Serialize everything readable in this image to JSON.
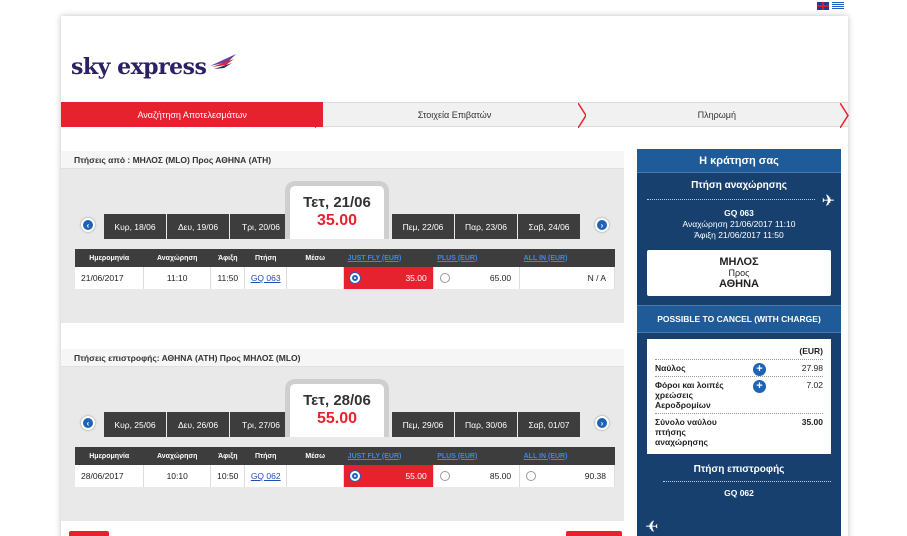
{
  "flags": [
    "uk-flag",
    "greek-flag"
  ],
  "brand": {
    "name": "sky express"
  },
  "steps": [
    {
      "label": "Αναζήτηση Αποτελεσμάτων",
      "active": true
    },
    {
      "label": "Στοιχεία Επιβατών",
      "active": false
    },
    {
      "label": "Πληρωμή",
      "active": false
    }
  ],
  "outbound": {
    "title": "Πτήσεις από : ΜΗΛΟΣ (MLO) Προς ΑΘΗΝΑ (ATH)",
    "dates_before": [
      "Κυρ, 18/06",
      "Δευ, 19/06",
      "Τρι, 20/06"
    ],
    "selected": {
      "date": "Τετ, 21/06",
      "price": "35.00"
    },
    "dates_after": [
      "Πεμ, 22/06",
      "Παρ, 23/06",
      "Σαβ, 24/06"
    ],
    "headers": [
      "Ημερομηνία",
      "Αναχώρηση",
      "Άφιξη",
      "Πτήση",
      "Μέσω",
      "JUST FLY (EUR)",
      "PLUS (EUR)",
      "ALL IN (EUR)"
    ],
    "row": {
      "date": "21/06/2017",
      "dep": "11:10",
      "arr": "11:50",
      "flight": "GQ 063",
      "via": "",
      "justfly": "35.00",
      "plus": "65.00",
      "allin": "N / A"
    }
  },
  "inbound": {
    "title": "Πτήσεις επιστροφής: ΑΘΗΝΑ (ATH) Προς ΜΗΛΟΣ (MLO)",
    "dates_before": [
      "Κυρ, 25/06",
      "Δευ, 26/06",
      "Τρι, 27/06"
    ],
    "selected": {
      "date": "Τετ, 28/06",
      "price": "55.00"
    },
    "dates_after": [
      "Πεμ, 29/06",
      "Παρ, 30/06",
      "Σαβ, 01/07"
    ],
    "headers": [
      "Ημερομηνία",
      "Αναχώρηση",
      "Άφιξη",
      "Πτήση",
      "Μέσω",
      "JUST FLY (EUR)",
      "PLUS (EUR)",
      "ALL IN (EUR)"
    ],
    "row": {
      "date": "28/06/2017",
      "dep": "10:10",
      "arr": "10:50",
      "flight": "GQ 062",
      "via": "",
      "justfly": "55.00",
      "plus": "85.00",
      "allin": "90.38"
    }
  },
  "booking": {
    "title": "Η κράτηση σας",
    "outbound_label": "Πτήση αναχώρησης",
    "flight": "GQ 063",
    "departure": "Αναχώρηση  21/06/2017  11:10",
    "arrival": "Άφιξη  21/06/2017  11:50",
    "from": "ΜΗΛΟΣ",
    "to_word": "Προς",
    "to": "ΑΘΗΝΑ",
    "cancel_policy": "POSSIBLE TO CANCEL (WITH CHARGE)",
    "currency": "(EUR)",
    "fare_label": "Ναύλος",
    "fare_value": "27.98",
    "taxes_label": "Φόροι και λοιπές χρεώσεις Αεροδρομίων",
    "taxes_value": "7.02",
    "total_label": "Σύνολο ναύλου πτήσης αναχώρησης",
    "total_value": "35.00",
    "return_label": "Πτήση επιστροφής",
    "return_flight": "GQ 062"
  },
  "colors": {
    "accent": "#e6222e",
    "navy": "#17406e",
    "link": "#1f4fb0"
  }
}
